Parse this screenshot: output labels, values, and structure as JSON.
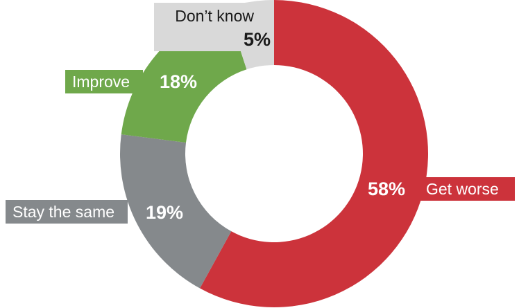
{
  "chart_data": {
    "type": "pie",
    "style": "donut",
    "title": "",
    "slices": [
      {
        "label": "Get worse",
        "value": 58,
        "value_label": "58%",
        "color": "#cc333b"
      },
      {
        "label": "Stay the same",
        "value": 19,
        "value_label": "19%",
        "color": "#85898c"
      },
      {
        "label": "Improve",
        "value": 18,
        "value_label": "18%",
        "color": "#6fa84b"
      },
      {
        "label": "Don’t know",
        "value": 5,
        "value_label": "5%",
        "color": "#d9d9d9"
      }
    ],
    "start": "12 o'clock",
    "direction": "clockwise"
  }
}
